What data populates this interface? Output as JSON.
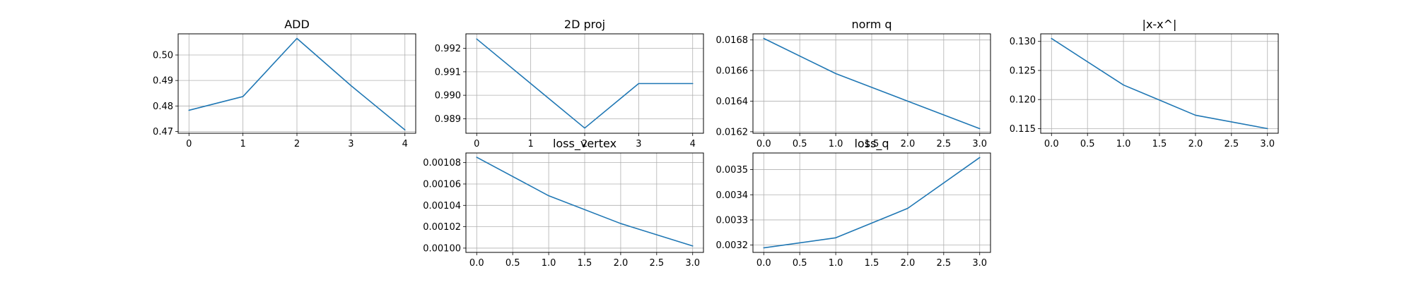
{
  "chart_data": [
    {
      "id": "add",
      "type": "line",
      "title": "ADD",
      "xlabel": "",
      "ylabel": "",
      "grid": true,
      "x": [
        0,
        1,
        2,
        3,
        4
      ],
      "xticks": [
        0,
        1,
        2,
        3,
        4
      ],
      "xtick_labels": [
        "0",
        "1",
        "2",
        "3",
        "4"
      ],
      "xlim": [
        -0.2,
        4.2
      ],
      "yticks": [
        0.47,
        0.48,
        0.49,
        0.5
      ],
      "ytick_labels": [
        "0.47",
        "0.48",
        "0.49",
        "0.50"
      ],
      "ylim": [
        0.4693,
        0.5083
      ],
      "series": [
        {
          "values": [
            0.4783,
            0.4837,
            0.5065,
            0.488,
            0.4706
          ],
          "color": "#1f77b4"
        }
      ]
    },
    {
      "id": "2d-proj",
      "type": "line",
      "title": "2D proj",
      "xlabel": "",
      "ylabel": "",
      "grid": true,
      "x": [
        0,
        1,
        2,
        3,
        4
      ],
      "xticks": [
        0,
        1,
        2,
        3,
        4
      ],
      "xtick_labels": [
        "0",
        "1",
        "2",
        "3",
        "4"
      ],
      "xlim": [
        -0.2,
        4.2
      ],
      "yticks": [
        0.989,
        0.99,
        0.991,
        0.992
      ],
      "ytick_labels": [
        "0.989",
        "0.990",
        "0.991",
        "0.992"
      ],
      "ylim": [
        0.98838,
        0.99262
      ],
      "series": [
        {
          "values": [
            0.9924,
            0.9905,
            0.9886,
            0.9905,
            0.9905
          ],
          "color": "#1f77b4"
        }
      ]
    },
    {
      "id": "norm-q",
      "type": "line",
      "title": "norm q",
      "xlabel": "",
      "ylabel": "",
      "grid": true,
      "x": [
        0,
        1,
        2,
        3
      ],
      "xticks": [
        0,
        0.5,
        1,
        1.5,
        2,
        2.5,
        3
      ],
      "xtick_labels": [
        "0.0",
        "0.5",
        "1.0",
        "1.5",
        "2.0",
        "2.5",
        "3.0"
      ],
      "xlim": [
        -0.15,
        3.15
      ],
      "yticks": [
        0.0162,
        0.0164,
        0.0166,
        0.0168
      ],
      "ytick_labels": [
        "0.0162",
        "0.0164",
        "0.0166",
        "0.0168"
      ],
      "ylim": [
        0.01619,
        0.01684
      ],
      "series": [
        {
          "values": [
            0.01681,
            0.01658,
            0.0164,
            0.01622
          ],
          "color": "#1f77b4"
        }
      ]
    },
    {
      "id": "x-xhat",
      "type": "line",
      "title": "|x-x^|",
      "xlabel": "",
      "ylabel": "",
      "grid": true,
      "x": [
        0,
        1,
        2,
        3
      ],
      "xticks": [
        0,
        0.5,
        1,
        1.5,
        2,
        2.5,
        3
      ],
      "xtick_labels": [
        "0.0",
        "0.5",
        "1.0",
        "1.5",
        "2.0",
        "2.5",
        "3.0"
      ],
      "xlim": [
        -0.15,
        3.15
      ],
      "yticks": [
        0.115,
        0.12,
        0.125,
        0.13
      ],
      "ytick_labels": [
        "0.115",
        "0.120",
        "0.125",
        "0.130"
      ],
      "ylim": [
        0.1142,
        0.1313
      ],
      "series": [
        {
          "values": [
            0.1305,
            0.1225,
            0.1173,
            0.115
          ],
          "color": "#1f77b4"
        }
      ]
    },
    {
      "id": "loss-vertex",
      "type": "line",
      "title": "loss_vertex",
      "xlabel": "",
      "ylabel": "",
      "grid": true,
      "x": [
        0,
        1,
        2,
        3
      ],
      "xticks": [
        0,
        0.5,
        1,
        1.5,
        2,
        2.5,
        3
      ],
      "xtick_labels": [
        "0.0",
        "0.5",
        "1.0",
        "1.5",
        "2.0",
        "2.5",
        "3.0"
      ],
      "xlim": [
        -0.15,
        3.15
      ],
      "yticks": [
        0.001,
        0.00102,
        0.00104,
        0.00106,
        0.00108
      ],
      "ytick_labels": [
        "0.00100",
        "0.00102",
        "0.00104",
        "0.00106",
        "0.00108"
      ],
      "ylim": [
        0.000996,
        0.001089
      ],
      "series": [
        {
          "values": [
            0.001085,
            0.001049,
            0.001023,
            0.001002
          ],
          "color": "#1f77b4"
        }
      ]
    },
    {
      "id": "loss-q",
      "type": "line",
      "title": "loss_q",
      "xlabel": "",
      "ylabel": "",
      "grid": true,
      "x": [
        0,
        1,
        2,
        3
      ],
      "xticks": [
        0,
        0.5,
        1,
        1.5,
        2,
        2.5,
        3
      ],
      "xtick_labels": [
        "0.0",
        "0.5",
        "1.0",
        "1.5",
        "2.0",
        "2.5",
        "3.0"
      ],
      "xlim": [
        -0.15,
        3.15
      ],
      "yticks": [
        0.0032,
        0.0033,
        0.0034,
        0.0035
      ],
      "ytick_labels": [
        "0.0032",
        "0.0033",
        "0.0034",
        "0.0035"
      ],
      "ylim": [
        0.003171,
        0.003566
      ],
      "series": [
        {
          "values": [
            0.003189,
            0.003229,
            0.003346,
            0.003548
          ],
          "color": "#1f77b4"
        }
      ]
    }
  ]
}
